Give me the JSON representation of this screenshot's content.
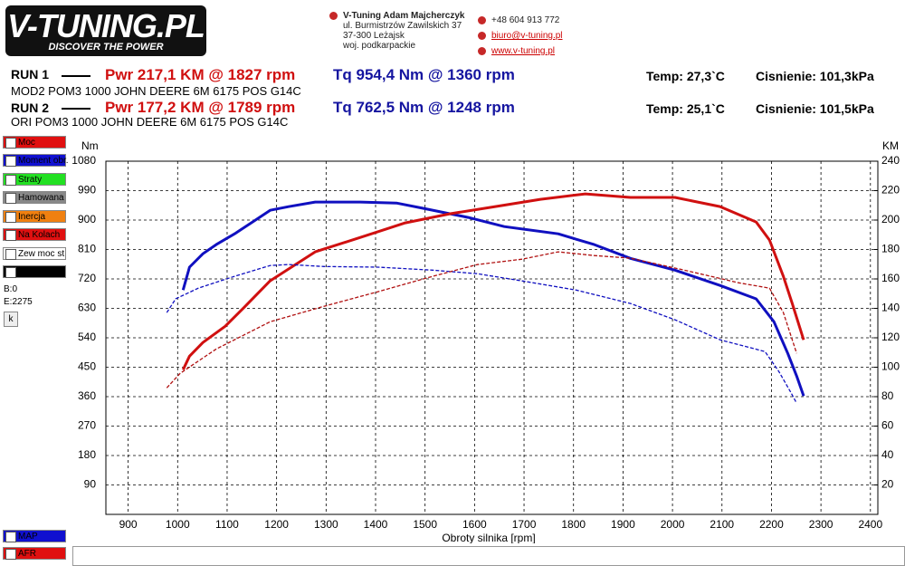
{
  "header": {
    "logo": "V-TUNING.PL",
    "tagline": "DISCOVER THE POWER",
    "company": "V-Tuning Adam Majcherczyk",
    "address": [
      "ul. Burmistrzów Zawilskich 37",
      "37-300 Leżajsk",
      "woj. podkarpackie"
    ],
    "phone": "+48 604 913 772",
    "email": "biuro@v-tuning.pl",
    "web": "www.v-tuning.pl"
  },
  "runs": [
    {
      "label": "RUN 1",
      "pwr": "Pwr  217,1 KM @ 1827 rpm",
      "tq": "Tq 954,4 Nm @ 1360 rpm",
      "temp": "Temp: 27,3`C",
      "pressure": "Cisnienie: 101,3kPa",
      "desc": "MOD2 POM3 1000 JOHN DEERE 6M 6175 POS G14C"
    },
    {
      "label": "RUN 2",
      "pwr": "Pwr  177,2 KM @ 1789 rpm",
      "tq": "Tq 762,5 Nm @ 1248 rpm",
      "temp": "Temp: 25,1`C",
      "pressure": "Cisnienie: 101,5kPa",
      "desc": "ORI POM3 1000 JOHN DEERE 6M 6175 POS G14C"
    }
  ],
  "panel": {
    "items": [
      "Moc",
      "Moment obr.",
      "Straty",
      "Hamowana",
      "Inercja",
      "Na Kolach",
      "Zew moc st"
    ],
    "b": "B:0",
    "e": "E:2275",
    "button": "k",
    "bottom": [
      "MAP",
      "AFR"
    ]
  },
  "chart_data": {
    "type": "line",
    "x_label": "Obroty silnika [rpm]",
    "y_label": "Nm",
    "y2_label": "KM",
    "xlim": [
      855,
      2415
    ],
    "xticks": [
      900,
      1000,
      1100,
      1200,
      1300,
      1400,
      1500,
      1600,
      1700,
      1800,
      1900,
      2000,
      2100,
      2200,
      2300,
      2400
    ],
    "ylim": [
      0,
      1080
    ],
    "yticks": [
      90,
      180,
      270,
      360,
      450,
      540,
      630,
      720,
      810,
      900,
      990,
      1080
    ],
    "y2lim": [
      0,
      240
    ],
    "y2ticks": [
      20,
      40,
      60,
      80,
      100,
      120,
      140,
      160,
      180,
      200,
      220,
      240
    ],
    "grid": true,
    "series": [
      {
        "color": "#1010c0",
        "dash": false,
        "x": [
          1011,
          1024,
          1051,
          1078,
          1115,
          1151,
          1187,
          1224,
          1278,
          1369,
          1442,
          1496,
          1587,
          1660,
          1769,
          1842,
          1915,
          2005,
          2096,
          2169,
          2205,
          2233,
          2251,
          2265
        ],
        "values": [
          686,
          756,
          797,
          825,
          858,
          894,
          930,
          941,
          955,
          955,
          952,
          936,
          908,
          880,
          858,
          825,
          783,
          747,
          700,
          659,
          589,
          492,
          423,
          362
        ]
      },
      {
        "color": "#d01010",
        "dash": false,
        "axis": "y2",
        "x": [
          1011,
          1024,
          1051,
          1096,
          1133,
          1187,
          1278,
          1369,
          1460,
          1551,
          1642,
          1733,
          1824,
          1915,
          2005,
          2096,
          2169,
          2196,
          2224,
          2242,
          2265
        ],
        "values": [
          98.3,
          107.5,
          116.8,
          127.8,
          140.2,
          158.7,
          178.4,
          188.2,
          198.1,
          204.3,
          209.2,
          214.1,
          217.8,
          215.4,
          215.4,
          209.2,
          198.7,
          186.4,
          161.7,
          143.3,
          118.6
        ]
      },
      {
        "color": "#1010c0",
        "dash": true,
        "x": [
          978,
          996,
          1042,
          1115,
          1187,
          1224,
          1296,
          1405,
          1515,
          1605,
          1696,
          1805,
          1915,
          2005,
          2096,
          2187,
          2215,
          2238,
          2251
        ],
        "values": [
          617,
          659,
          692,
          728,
          761,
          764,
          758,
          756,
          747,
          736,
          714,
          686,
          645,
          595,
          534,
          498,
          437,
          376,
          340
        ]
      },
      {
        "color": "#b01010",
        "dash": true,
        "axis": "y2",
        "x": [
          978,
          1005,
          1078,
          1187,
          1296,
          1405,
          1515,
          1605,
          1696,
          1769,
          1842,
          1915,
          2024,
          2133,
          2196,
          2224,
          2251
        ],
        "values": [
          86.0,
          95.8,
          112.4,
          130.9,
          141.4,
          151.3,
          161.7,
          169.7,
          173.4,
          178.4,
          175.9,
          174.1,
          166.0,
          157.4,
          153.7,
          137.1,
          109.4
        ]
      }
    ]
  }
}
